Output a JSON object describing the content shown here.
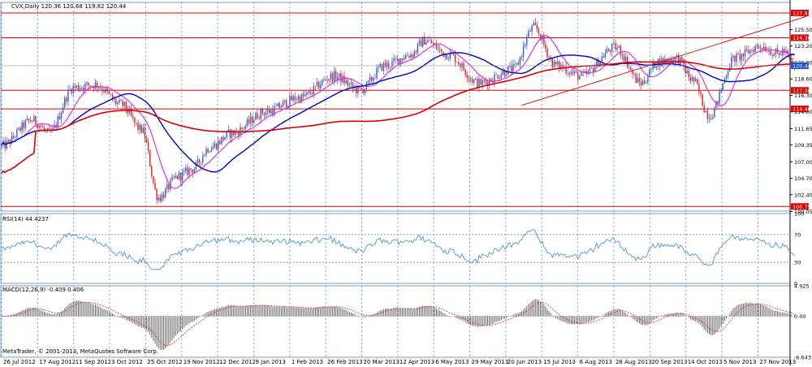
{
  "chart_data": {
    "type": "line",
    "symbol_header": "CVX,Daily  120.36 120.68 119.82 120.44",
    "footer_left": "MetaTrader, © 2001-2013, MetaQuotes Software Corp.",
    "colors": {
      "bull": "#1f5fe0",
      "bear": "#e02020",
      "ma_fast": "#e020e0",
      "ma_mid": "#0000cc",
      "ma_slow": "#dd0000",
      "level_line": "#dd0000",
      "grid": "#6aa6d6",
      "panel_border": "#7a9ec0",
      "rsi_line": "#3a8ad6",
      "macd_hist": "#666666",
      "macd_signal": "#e02020",
      "current_price_bg": "#1a4fd6"
    },
    "x_axis": {
      "date_labels": [
        "26 Jul 2012",
        "17 Aug 2012",
        "11 Sep 2012",
        "3 Oct 2012",
        "25 Oct 2012",
        "19 Nov 2012",
        "12 Dec 2012",
        "9 Jan 2013",
        "1 Feb 2013",
        "26 Feb 2013",
        "20 Mar 2013",
        "12 Apr 2013",
        "6 May 2013",
        "29 May 2013",
        "20 Jun 2013",
        "15 Jul 2013",
        "6 Aug 2013",
        "28 Aug 2013",
        "20 Sep 2013",
        "14 Oct 2013",
        "5 Nov 2013",
        "27 Nov 2013"
      ],
      "bars_per_label": 16
    },
    "price_panel": {
      "ylim": [
        100.1,
        129.3
      ],
      "tick_labels": [
        "125.50",
        "123.20",
        "120.90",
        "118.60",
        "116.30",
        "114.00",
        "111.65",
        "109.35",
        "107.00",
        "104.70",
        "102.40",
        "100.05"
      ],
      "horizontal_levels": [
        {
          "value": 127.82,
          "label": "127.82"
        },
        {
          "value": 124.36,
          "label": "124.36"
        },
        {
          "value": 117.0,
          "label": "117.00"
        },
        {
          "value": 114.4,
          "label": "114.40"
        },
        {
          "value": 100.75,
          "label": "100.75"
        }
      ],
      "current_price": {
        "value": 120.44,
        "label": "120.44"
      },
      "trendline": {
        "from_bar": 305,
        "from_price": 114.9,
        "to_bar": 390,
        "to_price": 126.2
      },
      "price_anchors": [
        [
          0,
          109.2
        ],
        [
          18,
          112.8
        ],
        [
          28,
          111.0
        ],
        [
          42,
          117.4
        ],
        [
          55,
          117.8
        ],
        [
          70,
          115.0
        ],
        [
          82,
          111.5
        ],
        [
          92,
          102.0
        ],
        [
          104,
          105.0
        ],
        [
          112,
          106.0
        ],
        [
          122,
          109.0
        ],
        [
          135,
          111.0
        ],
        [
          155,
          114.0
        ],
        [
          175,
          116.0
        ],
        [
          195,
          119.0
        ],
        [
          210,
          117.0
        ],
        [
          225,
          120.5
        ],
        [
          240,
          122.0
        ],
        [
          248,
          124.0
        ],
        [
          262,
          122.0
        ],
        [
          280,
          118.0
        ],
        [
          300,
          120.0
        ],
        [
          312,
          125.8
        ],
        [
          325,
          120.5
        ],
        [
          340,
          119.0
        ],
        [
          360,
          123.0
        ],
        [
          375,
          118.0
        ],
        [
          385,
          121.0
        ],
        [
          396,
          121.5
        ],
        [
          405,
          118.5
        ],
        [
          415,
          113.5
        ],
        [
          430,
          121.5
        ],
        [
          445,
          123.2
        ],
        [
          456,
          122.0
        ],
        [
          458,
          122.5
        ],
        [
          465,
          120.44
        ]
      ]
    },
    "rsi_panel": {
      "title": "RSI(14) 44.4237",
      "ylim": [
        0,
        100
      ],
      "tick_labels": [
        "100",
        "70",
        "30",
        "0"
      ],
      "levels": [
        70,
        30
      ]
    },
    "macd_panel": {
      "title": "MACD(12,26,9) -0.409 0.406",
      "ylim": [
        -6.643,
        4.925
      ],
      "tick_labels": [
        "4.925",
        "0.00",
        "-6.643"
      ]
    }
  }
}
